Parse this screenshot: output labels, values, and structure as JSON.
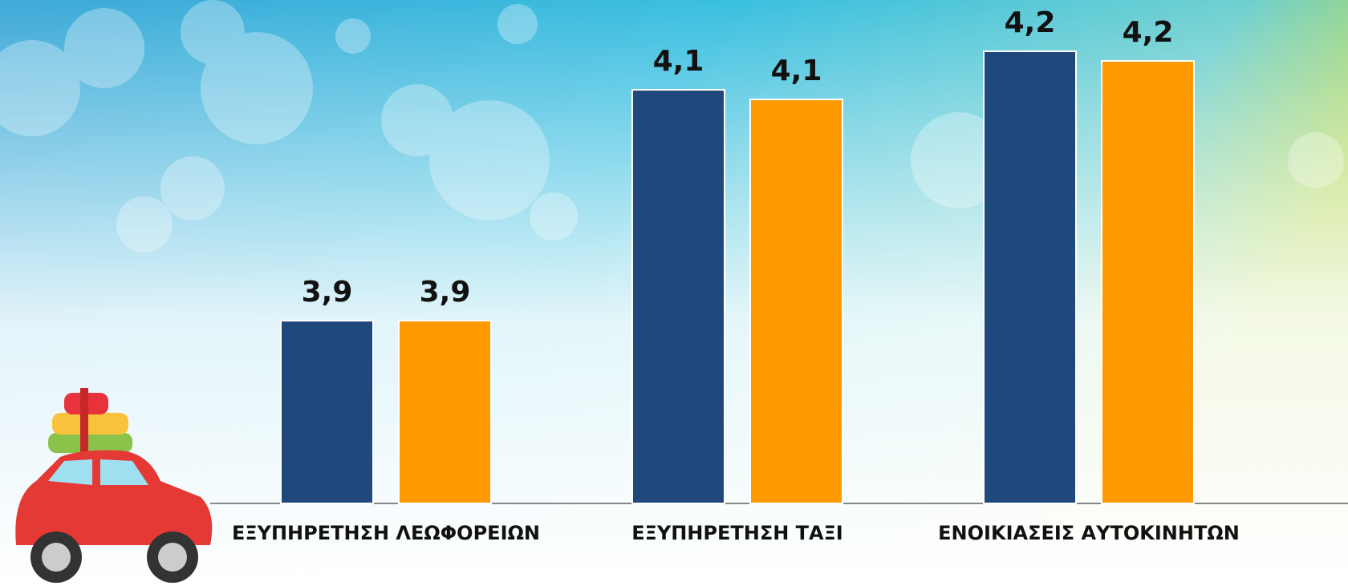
{
  "chart_data": {
    "type": "bar",
    "categories": [
      "ΕΞΥΠΗΡΕΤΗΣΗ ΛΕΩΦΟΡΕΙΩΝ",
      "ΕΞΥΠΗΡΕΤΗΣΗ ΤΑΞΙ",
      "ΕΝΟΙΚΙΑΣΕΙΣ ΑΥΤΟΚΙΝΗΤΩΝ"
    ],
    "series": [
      {
        "color": "#1f497d",
        "values": [
          3.89,
          4.13,
          4.17
        ],
        "value_labels": [
          "3,9",
          "4,1",
          "4,2"
        ]
      },
      {
        "color": "#ff9900",
        "values": [
          3.89,
          4.12,
          4.16
        ],
        "value_labels": [
          "3,9",
          "4,1",
          "4,2"
        ]
      }
    ],
    "ylim": [
      3.7,
      4.19
    ]
  }
}
